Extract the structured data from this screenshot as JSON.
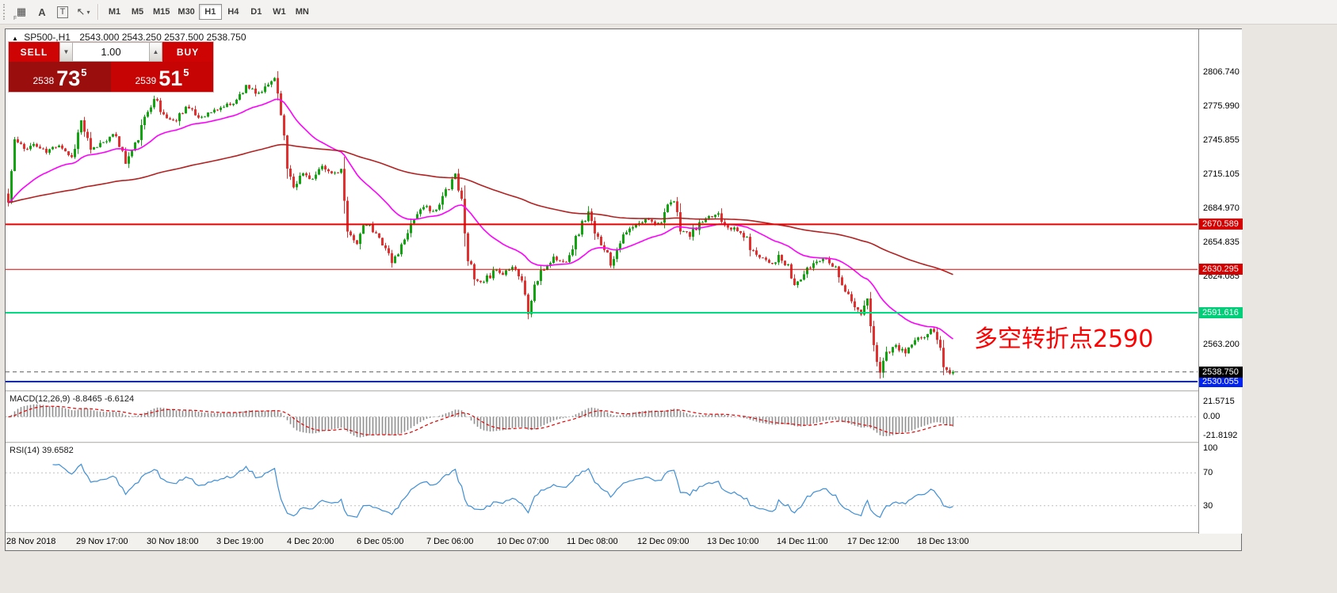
{
  "toolbar": {
    "buttons": [
      {
        "name": "stamp-grid",
        "glyph": "▦",
        "sub": "F"
      },
      {
        "name": "font-tool",
        "glyph": "A"
      },
      {
        "name": "text-tool",
        "glyph": "T"
      },
      {
        "name": "cursor-tool",
        "glyph": "↖",
        "caret": "▾"
      }
    ],
    "timeframes": [
      "M1",
      "M5",
      "M15",
      "M30",
      "H1",
      "H4",
      "D1",
      "W1",
      "MN"
    ],
    "active_timeframe": "H1"
  },
  "chart_header": {
    "marker": "▲",
    "symbol": "SP500-,H1",
    "ohlc": "2543.000 2543.250 2537.500 2538.750"
  },
  "trade_panel": {
    "sell_label": "SELL",
    "buy_label": "BUY",
    "volume": "1.00",
    "sell_price": {
      "prefix": "2538",
      "big": "73",
      "sup": "5"
    },
    "buy_price": {
      "prefix": "2539",
      "big": "51",
      "sup": "5"
    }
  },
  "annotation": {
    "text": "多空转折点2590",
    "color": "#FF0000"
  },
  "macd_panel": {
    "label": "MACD(12,26,9) -8.8465 -6.6124",
    "scale": [
      "21.5715",
      "0.00",
      "-21.8192"
    ]
  },
  "rsi_panel": {
    "label": "RSI(14) 39.6582",
    "scale": [
      "100",
      "70",
      "30"
    ],
    "levels": [
      70,
      30
    ]
  },
  "chart_data": {
    "type": "candlestick",
    "symbol": "SP500-",
    "timeframe": "H1",
    "ohlc_current": {
      "open": 2543.0,
      "high": 2543.25,
      "low": 2537.5,
      "close": 2538.75
    },
    "y_ticks": [
      "2806.740",
      "2775.990",
      "2745.855",
      "2715.105",
      "2684.970",
      "2654.835",
      "2624.085",
      "2563.200"
    ],
    "x_ticks": [
      "28 Nov 2018",
      "29 Nov 17:00",
      "30 Nov 18:00",
      "3 Dec 19:00",
      "4 Dec 20:00",
      "6 Dec 05:00",
      "7 Dec 06:00",
      "10 Dec 07:00",
      "11 Dec 08:00",
      "12 Dec 09:00",
      "13 Dec 10:00",
      "14 Dec 11:00",
      "17 Dec 12:00",
      "18 Dec 13:00"
    ],
    "lines": [
      {
        "name": "resistance-upper",
        "price": 2670.589,
        "label": "2670.589",
        "color": "#E60000",
        "badge_bg": "#D40000",
        "style": "solid",
        "width": 2
      },
      {
        "name": "resistance-lower",
        "price": 2630.295,
        "label": "2630.295",
        "color": "#E60000",
        "badge_bg": "#D40000",
        "style": "solid",
        "width": 1
      },
      {
        "name": "pivot-green",
        "price": 2591.616,
        "label": "2591.616",
        "color": "#00DC82",
        "badge_bg": "#00CE78",
        "style": "solid",
        "width": 2
      },
      {
        "name": "support-blue",
        "price": 2530.055,
        "label": "2530.055",
        "color": "#0023F0",
        "badge_bg": "#0023F0",
        "style": "solid",
        "width": 2
      },
      {
        "name": "last-price",
        "price": 2538.75,
        "label": "2538.750",
        "color": "#5A5A5A",
        "badge_bg": "#000000",
        "style": "dashed",
        "width": 1
      }
    ],
    "candle_count": 299,
    "seed": 11,
    "colors": {
      "up": "#12A212",
      "down": "#E03030",
      "ma_fast": "#FF00FF",
      "ma_slow": "#B22222",
      "macd_hist": "#8F8F8F",
      "macd_signal": "#E00000",
      "rsi": "#3E8FD6",
      "level_dash": "#BFBFBF"
    },
    "overlays": [
      {
        "name": "MA-fast",
        "type": "ema",
        "period": 30,
        "color_key": "ma_fast"
      },
      {
        "name": "MA-slow",
        "type": "ema",
        "period": 150,
        "color_key": "ma_slow"
      }
    ],
    "indicators": [
      {
        "name": "MACD",
        "params": [
          12,
          26,
          9
        ],
        "values": "-8.8465 -6.6124"
      },
      {
        "name": "RSI",
        "params": [
          14
        ],
        "value": "39.6582"
      }
    ],
    "price_path_anchors": [
      [
        0,
        2690
      ],
      [
        2,
        2746
      ],
      [
        5,
        2738
      ],
      [
        8,
        2742
      ],
      [
        12,
        2735
      ],
      [
        16,
        2743
      ],
      [
        20,
        2730
      ],
      [
        23,
        2763
      ],
      [
        26,
        2736
      ],
      [
        30,
        2745
      ],
      [
        34,
        2751
      ],
      [
        37,
        2726
      ],
      [
        40,
        2741
      ],
      [
        44,
        2772
      ],
      [
        46,
        2786
      ],
      [
        48,
        2771
      ],
      [
        52,
        2762
      ],
      [
        56,
        2776
      ],
      [
        60,
        2766
      ],
      [
        64,
        2771
      ],
      [
        68,
        2776
      ],
      [
        72,
        2781
      ],
      [
        75,
        2796
      ],
      [
        78,
        2786
      ],
      [
        81,
        2791
      ],
      [
        84,
        2803
      ],
      [
        86,
        2772
      ],
      [
        88,
        2722
      ],
      [
        90,
        2706
      ],
      [
        93,
        2716
      ],
      [
        96,
        2711
      ],
      [
        99,
        2721
      ],
      [
        102,
        2716
      ],
      [
        105,
        2719
      ],
      [
        107,
        2662
      ],
      [
        110,
        2656
      ],
      [
        113,
        2671
      ],
      [
        116,
        2661
      ],
      [
        119,
        2651
      ],
      [
        121,
        2636
      ],
      [
        124,
        2651
      ],
      [
        126,
        2666
      ],
      [
        129,
        2681
      ],
      [
        132,
        2686
      ],
      [
        135,
        2681
      ],
      [
        138,
        2701
      ],
      [
        141,
        2716
      ],
      [
        143,
        2691
      ],
      [
        145,
        2641
      ],
      [
        147,
        2621
      ],
      [
        150,
        2616
      ],
      [
        153,
        2631
      ],
      [
        156,
        2626
      ],
      [
        159,
        2636
      ],
      [
        162,
        2621
      ],
      [
        164,
        2591
      ],
      [
        166,
        2616
      ],
      [
        169,
        2631
      ],
      [
        172,
        2641
      ],
      [
        175,
        2636
      ],
      [
        178,
        2651
      ],
      [
        181,
        2671
      ],
      [
        183,
        2681
      ],
      [
        185,
        2661
      ],
      [
        188,
        2651
      ],
      [
        190,
        2636
      ],
      [
        193,
        2656
      ],
      [
        196,
        2666
      ],
      [
        199,
        2671
      ],
      [
        202,
        2676
      ],
      [
        205,
        2671
      ],
      [
        208,
        2686
      ],
      [
        210,
        2691
      ],
      [
        212,
        2666
      ],
      [
        215,
        2661
      ],
      [
        218,
        2671
      ],
      [
        221,
        2676
      ],
      [
        224,
        2681
      ],
      [
        226,
        2671
      ],
      [
        229,
        2666
      ],
      [
        232,
        2661
      ],
      [
        235,
        2646
      ],
      [
        238,
        2641
      ],
      [
        241,
        2636
      ],
      [
        243,
        2641
      ],
      [
        246,
        2631
      ],
      [
        248,
        2616
      ],
      [
        251,
        2626
      ],
      [
        254,
        2636
      ],
      [
        257,
        2641
      ],
      [
        260,
        2636
      ],
      [
        262,
        2626
      ],
      [
        264,
        2611
      ],
      [
        267,
        2596
      ],
      [
        269,
        2591
      ],
      [
        271,
        2601
      ],
      [
        273,
        2561
      ],
      [
        275,
        2541
      ],
      [
        277,
        2556
      ],
      [
        280,
        2561
      ],
      [
        283,
        2556
      ],
      [
        286,
        2566
      ],
      [
        289,
        2571
      ],
      [
        291,
        2576
      ],
      [
        293,
        2571
      ],
      [
        295,
        2546
      ],
      [
        297,
        2536
      ],
      [
        298,
        2538.75
      ]
    ]
  }
}
